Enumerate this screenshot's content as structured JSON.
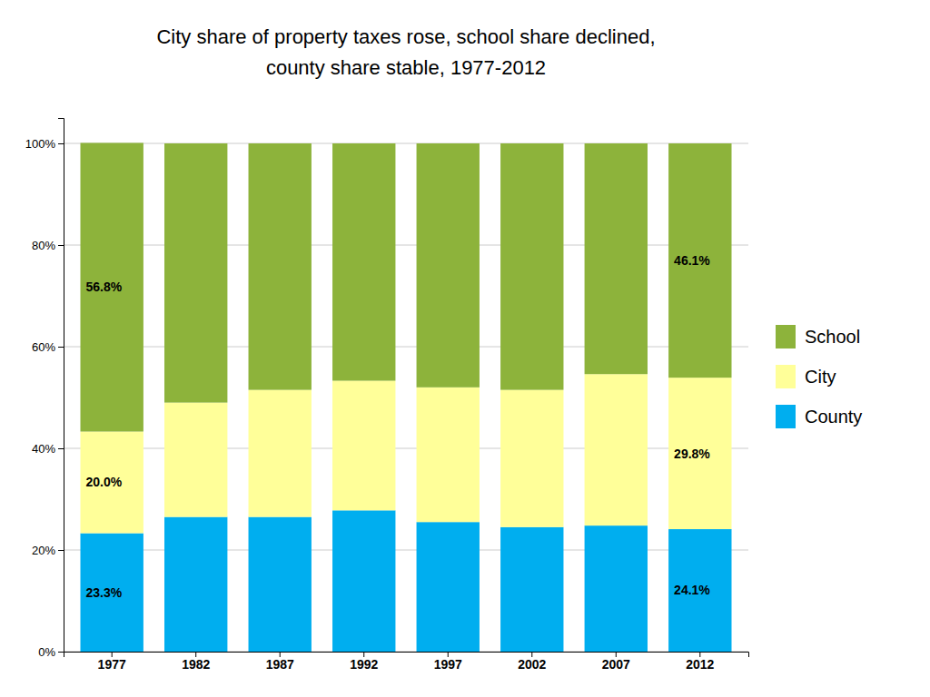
{
  "chart_data": {
    "type": "bar",
    "title": "City share of property taxes rose, school share declined,",
    "subtitle": "county share stable, 1977-2012",
    "categories": [
      "1977",
      "1982",
      "1987",
      "1992",
      "1997",
      "2002",
      "2007",
      "2012"
    ],
    "series": [
      {
        "name": "County",
        "color": "#00AEEF",
        "values": [
          23.3,
          26.5,
          26.5,
          27.8,
          25.5,
          24.5,
          24.8,
          24.1
        ],
        "value_labels": [
          "23.3%",
          null,
          null,
          null,
          null,
          null,
          null,
          "24.1%"
        ]
      },
      {
        "name": "City",
        "color": "#FFFF99",
        "values": [
          20.0,
          22.5,
          25.0,
          25.5,
          26.5,
          27.0,
          29.8,
          29.8
        ],
        "value_labels": [
          "20.0%",
          null,
          null,
          null,
          null,
          null,
          null,
          "29.8%"
        ]
      },
      {
        "name": "School",
        "color": "#8DB33B",
        "values": [
          56.8,
          51.0,
          48.5,
          46.7,
          48.0,
          48.5,
          45.4,
          46.1
        ],
        "value_labels": [
          "56.8%",
          null,
          null,
          null,
          null,
          null,
          null,
          "46.1%"
        ]
      }
    ],
    "stacked": true,
    "data_labels": true,
    "ylim": [
      0,
      105
    ],
    "yticks": [
      {
        "value": 0,
        "label": "0%"
      },
      {
        "value": 20,
        "label": "20%"
      },
      {
        "value": 40,
        "label": "40%"
      },
      {
        "value": 60,
        "label": "60%"
      },
      {
        "value": 80,
        "label": "80%"
      },
      {
        "value": 100,
        "label": "100%"
      }
    ],
    "grid": true,
    "legend": "right"
  }
}
